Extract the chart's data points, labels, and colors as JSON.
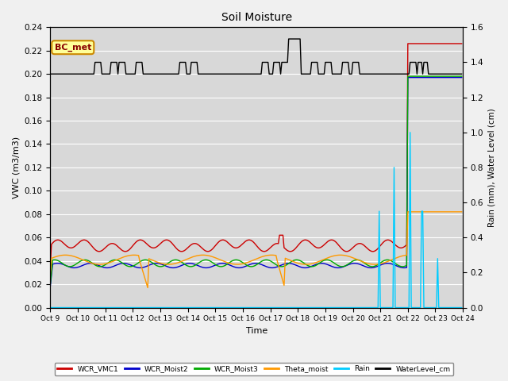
{
  "title": "Soil Moisture",
  "xlabel": "Time",
  "ylabel_left": "VWC (m3/m3)",
  "ylabel_right": "Rain (mm), Water Level (cm)",
  "ylim_left": [
    0.0,
    0.24
  ],
  "ylim_right": [
    0.0,
    1.6
  ],
  "plot_bg_color": "#d8d8d8",
  "fig_bg_color": "#f0f0f0",
  "legend_entries": [
    "WCR_VMC1",
    "WCR_Moist2",
    "WCR_Moist3",
    "Theta_moist",
    "Rain",
    "WaterLevel_cm"
  ],
  "legend_colors": [
    "#cc0000",
    "#0000cc",
    "#00aa00",
    "#ff9900",
    "#00ccff",
    "#000000"
  ],
  "annotation_text": "BC_met",
  "annotation_box_color": "#ffff99",
  "annotation_box_edge": "#cc8800",
  "tick_labels": [
    "Oct 9",
    "Oct 10",
    "Oct 11",
    "Oct 12",
    "Oct 13",
    "Oct 14",
    "Oct 15",
    "Oct 16",
    "Oct 17",
    "Oct 18",
    "Oct 19",
    "Oct 20",
    "Oct 21",
    "Oct 22",
    "Oct 23",
    "Oct 24"
  ],
  "yticks_left": [
    0.0,
    0.02,
    0.04,
    0.06,
    0.08,
    0.1,
    0.12,
    0.14,
    0.16,
    0.18,
    0.2,
    0.22,
    0.24
  ],
  "yticks_right": [
    0.0,
    0.2,
    0.4,
    0.6,
    0.8,
    1.0,
    1.2,
    1.4,
    1.6
  ],
  "grid_color": "#ffffff",
  "linewidth": 1.0
}
